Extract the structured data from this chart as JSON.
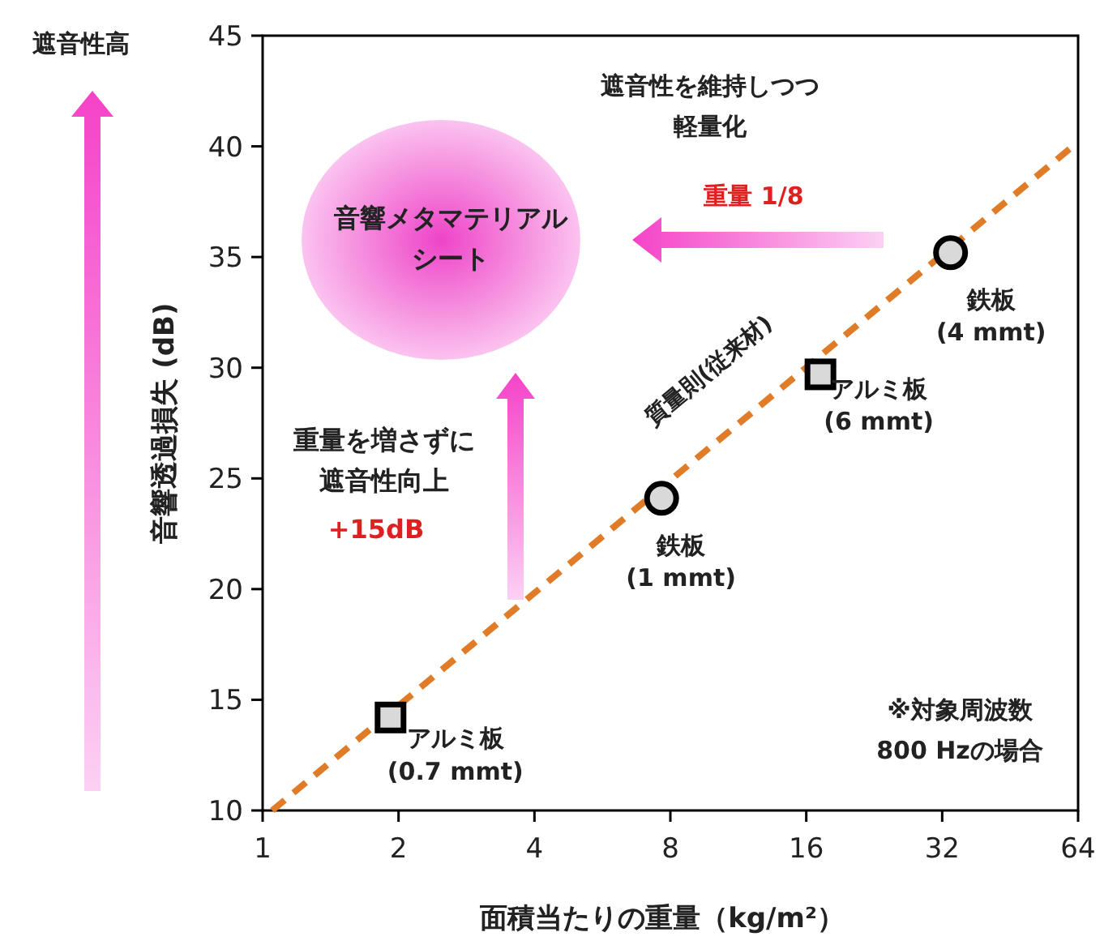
{
  "chart_data": {
    "type": "scatter",
    "xlabel": "面積当たりの重量（kg/m²）",
    "ylabel": "音響透過損失 (dB)",
    "log": "x",
    "xlim": [
      1,
      64
    ],
    "xticks": [
      1,
      2,
      4,
      8,
      16,
      32,
      64
    ],
    "ylim": [
      10,
      45
    ],
    "yticks": [
      10,
      15,
      20,
      25,
      30,
      35,
      40,
      45
    ],
    "grid": false,
    "series": [
      {
        "type": "scatter",
        "marker": "circle",
        "color": "#d9d9d9",
        "x": [
          7.65,
          33.4
        ],
        "values": [
          24.1,
          35.2
        ]
      },
      {
        "type": "scatter",
        "marker": "square",
        "color": "#d9d9d9",
        "x": [
          1.92,
          17.2
        ],
        "values": [
          14.2,
          29.7
        ]
      },
      {
        "type": "line",
        "line_style": "dashed",
        "color": "#e07b28",
        "x": [
          1.05,
          64
        ],
        "values": [
          10,
          40.2
        ]
      }
    ],
    "annotations": [
      "遮音性高",
      "遮音性を維持しつつ",
      "軽量化",
      "重量 1/8",
      "音響メタマテリアル",
      "シート",
      "重量を増さずに",
      "遮音性向上",
      "+15dB",
      "※対象周波数",
      "800 Hzの場合",
      "質量則(従来材)",
      {
        "text": "鉄板\n(4 mmt)",
        "x": 33.4,
        "y": 35.2
      },
      {
        "text": "アルミ板\n(6 mmt)",
        "x": 17.2,
        "y": 29.7
      },
      {
        "text": "鉄板\n(1 mmt)",
        "x": 7.65,
        "y": 24.1
      },
      {
        "text": "アルミ板\n(0.7 mmt)",
        "x": 1.92,
        "y": 14.2
      }
    ]
  }
}
